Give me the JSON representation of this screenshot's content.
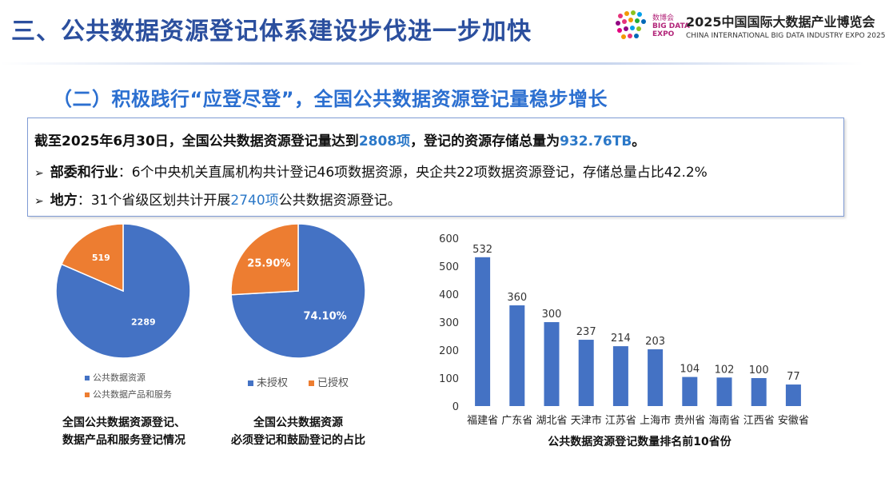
{
  "header": {
    "title": "三、公共数据资源登记体系建设步伐进一步加快",
    "logo_text_line1": "数博会",
    "logo_text_line2": "BIG DATA",
    "logo_text_line3": "EXPO",
    "expo_cn": "2025中国国际大数据产业博览会",
    "expo_en": "CHINA INTERNATIONAL BIG DATA INDUSTRY EXPO 2025"
  },
  "subtitle": "（二）积极践行“应登尽登”，全国公共数据资源登记量稳步增长",
  "summary": {
    "line1_a": "截至2025年6月30日，全国公共数据资源登记量达到",
    "line1_hl1": "2808项",
    "line1_b": "，登记的资源存储总量为",
    "line1_hl2": "932.76TB",
    "line1_c": "。",
    "bullet": "➢",
    "line2_label": "部委和行业",
    "line2_text": "：6个中央机关直属机构共计登记46项数据资源，央企共22项数据资源登记，存储总量占比42.2%",
    "line3_label": "地方",
    "line3_a": "：31个省级区划共计开展",
    "line3_hl": "2740项",
    "line3_b": "公共数据资源登记。"
  },
  "chart_data": [
    {
      "type": "pie",
      "title": "全国公共数据资源登记、数据产品和服务登记情况",
      "title_line1": "全国公共数据资源登记、",
      "title_line2": "数据产品和服务登记情况",
      "slices": [
        {
          "name": "公共数据资源",
          "value": 2289,
          "label": "2289",
          "color": "#4472c4"
        },
        {
          "name": "公共数据产品和服务",
          "value": 519,
          "label": "519",
          "color": "#ed7d31"
        }
      ],
      "legend_placement": "bottom"
    },
    {
      "type": "pie",
      "title": "全国公共数据资源必须登记和鼓励登记的占比",
      "title_line1": "全国公共数据资源",
      "title_line2": "必须登记和鼓励登记的占比",
      "slices": [
        {
          "name": "未授权",
          "value": 74.1,
          "label": "74.10%",
          "color": "#4472c4"
        },
        {
          "name": "已授权",
          "value": 25.9,
          "label": "25.90%",
          "color": "#ed7d31"
        }
      ],
      "legend_placement": "bottom"
    },
    {
      "type": "bar",
      "title": "公共数据资源登记数量排名前10省份",
      "categories": [
        "福建省",
        "广东省",
        "湖北省",
        "天津市",
        "江苏省",
        "上海市",
        "贵州省",
        "海南省",
        "江西省",
        "安徽省"
      ],
      "values": [
        532,
        360,
        300,
        237,
        214,
        203,
        104,
        102,
        100,
        77
      ],
      "ylim": [
        0,
        600
      ],
      "yticks": [
        "0",
        "100",
        "200",
        "300",
        "400",
        "500",
        "600"
      ],
      "grid": false,
      "color": "#4472c4"
    }
  ]
}
